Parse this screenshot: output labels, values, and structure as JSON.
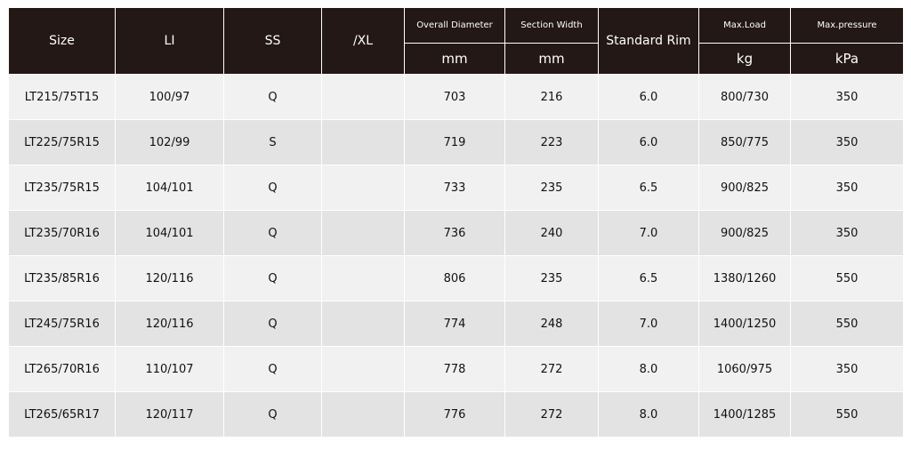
{
  "headers": {
    "size": "Size",
    "li": "LI",
    "ss": "SS",
    "xl": "/XL",
    "overall_diameter": "Overall Diameter",
    "section_width": "Section Width",
    "standard_rim": "Standard Rim",
    "max_load": "Max.Load",
    "max_pressure": "Max.pressure"
  },
  "units": {
    "overall_diameter": "mm",
    "section_width": "mm",
    "max_load": "kg",
    "max_pressure": "kPa"
  },
  "rows": [
    {
      "size": "LT215/75T15",
      "li": "100/97",
      "ss": "Q",
      "xl": "",
      "od": "703",
      "sw": "216",
      "rim": "6.0",
      "load": "800/730",
      "pressure": "350"
    },
    {
      "size": "LT225/75R15",
      "li": "102/99",
      "ss": "S",
      "xl": "",
      "od": "719",
      "sw": "223",
      "rim": "6.0",
      "load": "850/775",
      "pressure": "350"
    },
    {
      "size": "LT235/75R15",
      "li": "104/101",
      "ss": "Q",
      "xl": "",
      "od": "733",
      "sw": "235",
      "rim": "6.5",
      "load": "900/825",
      "pressure": "350"
    },
    {
      "size": "LT235/70R16",
      "li": "104/101",
      "ss": "Q",
      "xl": "",
      "od": "736",
      "sw": "240",
      "rim": "7.0",
      "load": "900/825",
      "pressure": "350"
    },
    {
      "size": "LT235/85R16",
      "li": "120/116",
      "ss": "Q",
      "xl": "",
      "od": "806",
      "sw": "235",
      "rim": "6.5",
      "load": "1380/1260",
      "pressure": "550"
    },
    {
      "size": "LT245/75R16",
      "li": "120/116",
      "ss": "Q",
      "xl": "",
      "od": "774",
      "sw": "248",
      "rim": "7.0",
      "load": "1400/1250",
      "pressure": "550"
    },
    {
      "size": "LT265/70R16",
      "li": "110/107",
      "ss": "Q",
      "xl": "",
      "od": "778",
      "sw": "272",
      "rim": "8.0",
      "load": "1060/975",
      "pressure": "350"
    },
    {
      "size": "LT265/65R17",
      "li": "120/117",
      "ss": "Q",
      "xl": "",
      "od": "776",
      "sw": "272",
      "rim": "8.0",
      "load": "1400/1285",
      "pressure": "550"
    }
  ]
}
